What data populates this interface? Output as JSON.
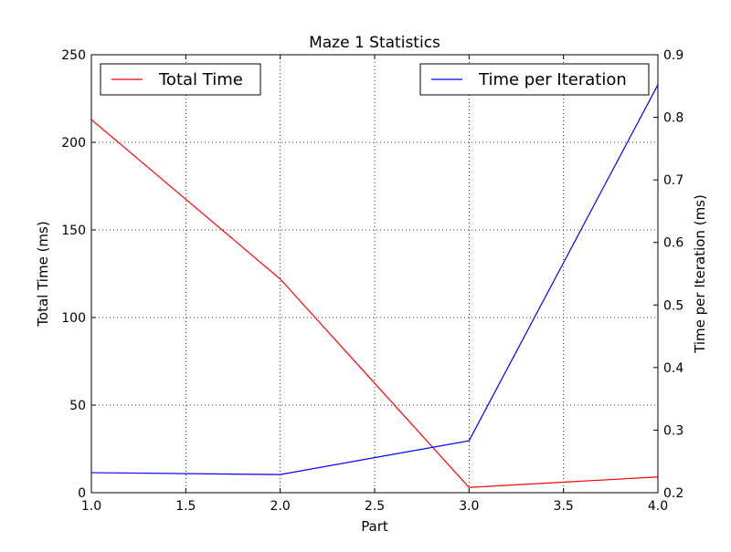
{
  "chart_data": {
    "type": "line",
    "title": "Maze 1 Statistics",
    "xlabel": "Part",
    "ylabel_left": "Total Time (ms)",
    "ylabel_right": "Time per Iteration (ms)",
    "x": [
      1.0,
      2.0,
      3.0,
      4.0
    ],
    "xlim": [
      1.0,
      4.0
    ],
    "xticks": [
      "1.0",
      "1.5",
      "2.0",
      "2.5",
      "3.0",
      "3.5",
      "4.0"
    ],
    "ylim_left": [
      0,
      250
    ],
    "yticks_left": [
      "0",
      "50",
      "100",
      "150",
      "200",
      "250"
    ],
    "ylim_right": [
      0.2,
      0.9
    ],
    "yticks_right": [
      "0.2",
      "0.3",
      "0.4",
      "0.5",
      "0.6",
      "0.7",
      "0.8",
      "0.9"
    ],
    "grid": true,
    "series": [
      {
        "name": "Total Time",
        "axis": "left",
        "color": "#ff0000",
        "values": [
          213,
          122,
          3,
          9
        ],
        "legend_position": "top-left"
      },
      {
        "name": "Time per Iteration",
        "axis": "right",
        "color": "#0000ff",
        "values": [
          0.232,
          0.229,
          0.283,
          0.852
        ],
        "legend_position": "top-right"
      }
    ]
  }
}
